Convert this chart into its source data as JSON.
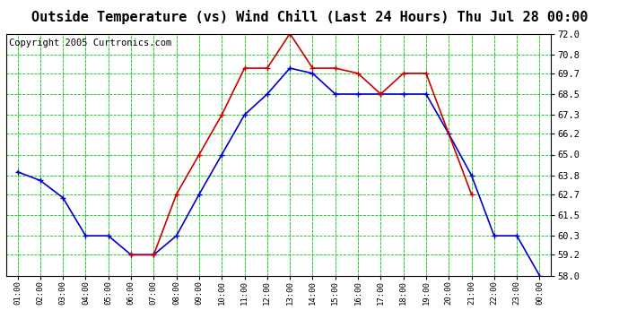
{
  "title": "Outside Temperature (vs) Wind Chill (Last 24 Hours) Thu Jul 28 00:00",
  "copyright": "Copyright 2005 Curtronics.com",
  "x_labels": [
    "01:00",
    "02:00",
    "03:00",
    "04:00",
    "05:00",
    "06:00",
    "07:00",
    "08:00",
    "09:00",
    "10:00",
    "11:00",
    "12:00",
    "13:00",
    "14:00",
    "15:00",
    "16:00",
    "17:00",
    "18:00",
    "19:00",
    "20:00",
    "21:00",
    "22:00",
    "23:00",
    "00:00"
  ],
  "blue_data": [
    64.0,
    63.5,
    62.5,
    60.3,
    60.3,
    59.2,
    59.2,
    60.3,
    62.7,
    65.0,
    67.3,
    68.5,
    70.0,
    69.7,
    68.5,
    68.5,
    68.5,
    68.5,
    68.5,
    66.2,
    63.8,
    60.3,
    60.3,
    58.0
  ],
  "red_data": [
    null,
    null,
    null,
    null,
    null,
    59.2,
    59.2,
    62.7,
    65.0,
    67.3,
    70.0,
    70.0,
    72.0,
    70.0,
    70.0,
    69.7,
    68.5,
    69.7,
    69.7,
    null,
    62.7,
    null,
    null,
    null
  ],
  "ylim": [
    58.0,
    72.0
  ],
  "yticks": [
    58.0,
    59.2,
    60.3,
    61.5,
    62.7,
    63.8,
    65.0,
    66.2,
    67.3,
    68.5,
    69.7,
    70.8,
    72.0
  ],
  "blue_color": "#0000cc",
  "red_color": "#cc0000",
  "bg_color": "#ffffff",
  "plot_bg_color": "#ffffff",
  "grid_color": "#00cc00",
  "title_fontsize": 11,
  "copyright_fontsize": 7.5
}
